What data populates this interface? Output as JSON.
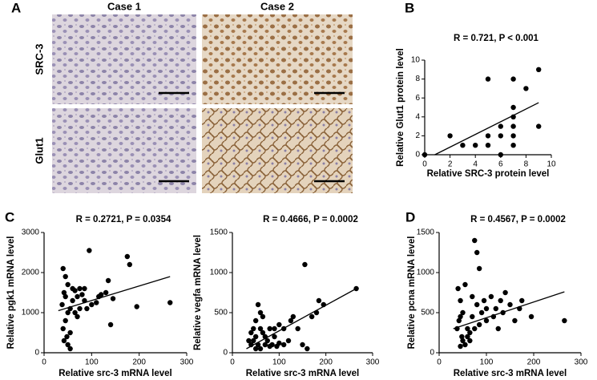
{
  "figure": {
    "panel_labels": [
      "A",
      "B",
      "C",
      "D"
    ],
    "columns": [
      "Case 1",
      "Case 2"
    ],
    "rows": [
      "SRC-3",
      "Glut1"
    ]
  },
  "chart_data": [
    {
      "type": "scatter",
      "title": "R = 0.721,  P < 0.001",
      "xlabel": "Relative SRC-3 protein level",
      "ylabel": "Relative Glut1 protein level",
      "xlim": [
        0,
        10
      ],
      "ylim": [
        0,
        10
      ],
      "xticks": [
        0,
        2,
        4,
        6,
        8,
        10
      ],
      "yticks": [
        0,
        2,
        4,
        6,
        8,
        10
      ],
      "color": "#000000",
      "x": [
        0,
        2,
        3,
        4,
        5,
        5,
        5,
        6,
        6,
        6,
        7,
        7,
        7,
        7,
        7,
        7,
        8,
        9,
        9
      ],
      "values": [
        0,
        2,
        1,
        1,
        1,
        2,
        8,
        0,
        2,
        3,
        1,
        2,
        3,
        4,
        5,
        8,
        7,
        9,
        3
      ],
      "trendline": {
        "x": [
          0.8,
          9
        ],
        "y": [
          0,
          5.5
        ]
      }
    },
    {
      "type": "scatter",
      "title": "R = 0.2721, P = 0.0354",
      "xlabel": "Relative src-3 mRNA level",
      "ylabel": "Relative pgk1 mRNA level",
      "xlim": [
        0,
        300
      ],
      "ylim": [
        0,
        3000
      ],
      "xticks": [
        0,
        100,
        200,
        300
      ],
      "yticks": [
        0,
        1000,
        2000,
        3000
      ],
      "color": "#000000",
      "x": [
        40,
        45,
        42,
        38,
        50,
        45,
        40,
        48,
        50,
        55,
        42,
        60,
        65,
        70,
        75,
        80,
        85,
        90,
        95,
        100,
        60,
        50,
        55,
        70,
        45,
        110,
        115,
        120,
        130,
        135,
        140,
        145,
        175,
        180,
        195,
        265,
        65,
        75,
        55,
        85
      ],
      "values": [
        2100,
        1900,
        1500,
        1200,
        1000,
        800,
        600,
        400,
        200,
        100,
        300,
        1600,
        1550,
        1400,
        1600,
        1450,
        1300,
        1100,
        2550,
        1200,
        1300,
        1700,
        1100,
        900,
        1400,
        1250,
        1400,
        1450,
        1500,
        1800,
        700,
        1350,
        2400,
        2200,
        1150,
        1250,
        1000,
        1100,
        500,
        1600
      ],
      "trendline": {
        "x": [
          30,
          265
        ],
        "y": [
          1050,
          1900
        ]
      }
    },
    {
      "type": "scatter",
      "title": "R = 0.4666, P = 0.0002",
      "xlabel": "Relative src-3 mRNA level",
      "ylabel": "Relative vegfa mRNA level",
      "xlim": [
        0,
        300
      ],
      "ylim": [
        0,
        1500
      ],
      "xticks": [
        0,
        100,
        200,
        300
      ],
      "yticks": [
        0,
        500,
        1000,
        1500
      ],
      "color": "#000000",
      "x": [
        40,
        45,
        50,
        55,
        60,
        65,
        70,
        50,
        45,
        55,
        60,
        75,
        80,
        85,
        90,
        100,
        110,
        120,
        130,
        140,
        150,
        155,
        160,
        170,
        180,
        185,
        195,
        265,
        40,
        35,
        65,
        70,
        95,
        100,
        80,
        110,
        125,
        60,
        50,
        90
      ],
      "values": [
        100,
        150,
        200,
        100,
        300,
        250,
        200,
        400,
        300,
        600,
        500,
        150,
        300,
        100,
        200,
        350,
        300,
        150,
        450,
        300,
        100,
        1100,
        50,
        450,
        500,
        650,
        600,
        800,
        250,
        150,
        450,
        100,
        80,
        120,
        80,
        100,
        400,
        50,
        50,
        300
      ],
      "trendline": {
        "x": [
          30,
          265
        ],
        "y": [
          50,
          800
        ]
      }
    },
    {
      "type": "scatter",
      "title": "R = 0.4567, P = 0.0002",
      "xlabel": "Relative src-3 mRNA level",
      "ylabel": "Relative pcna mRNA level",
      "xlim": [
        0,
        300
      ],
      "ylim": [
        0,
        1500
      ],
      "xticks": [
        0,
        100,
        200,
        300
      ],
      "yticks": [
        0,
        500,
        1000,
        1500
      ],
      "color": "#000000",
      "x": [
        40,
        45,
        50,
        42,
        38,
        48,
        55,
        45,
        50,
        60,
        65,
        70,
        75,
        80,
        85,
        80,
        90,
        95,
        100,
        70,
        55,
        60,
        110,
        120,
        125,
        130,
        135,
        140,
        150,
        160,
        170,
        175,
        195,
        265,
        65,
        75,
        100,
        115,
        45,
        85
      ],
      "values": [
        800,
        650,
        500,
        400,
        300,
        200,
        100,
        80,
        150,
        300,
        250,
        700,
        1400,
        1250,
        1050,
        600,
        500,
        650,
        400,
        450,
        850,
        200,
        700,
        550,
        300,
        650,
        500,
        750,
        600,
        400,
        550,
        650,
        450,
        400,
        150,
        300,
        550,
        450,
        450,
        350
      ],
      "trendline": {
        "x": [
          30,
          265
        ],
        "y": [
          300,
          760
        ]
      }
    }
  ]
}
